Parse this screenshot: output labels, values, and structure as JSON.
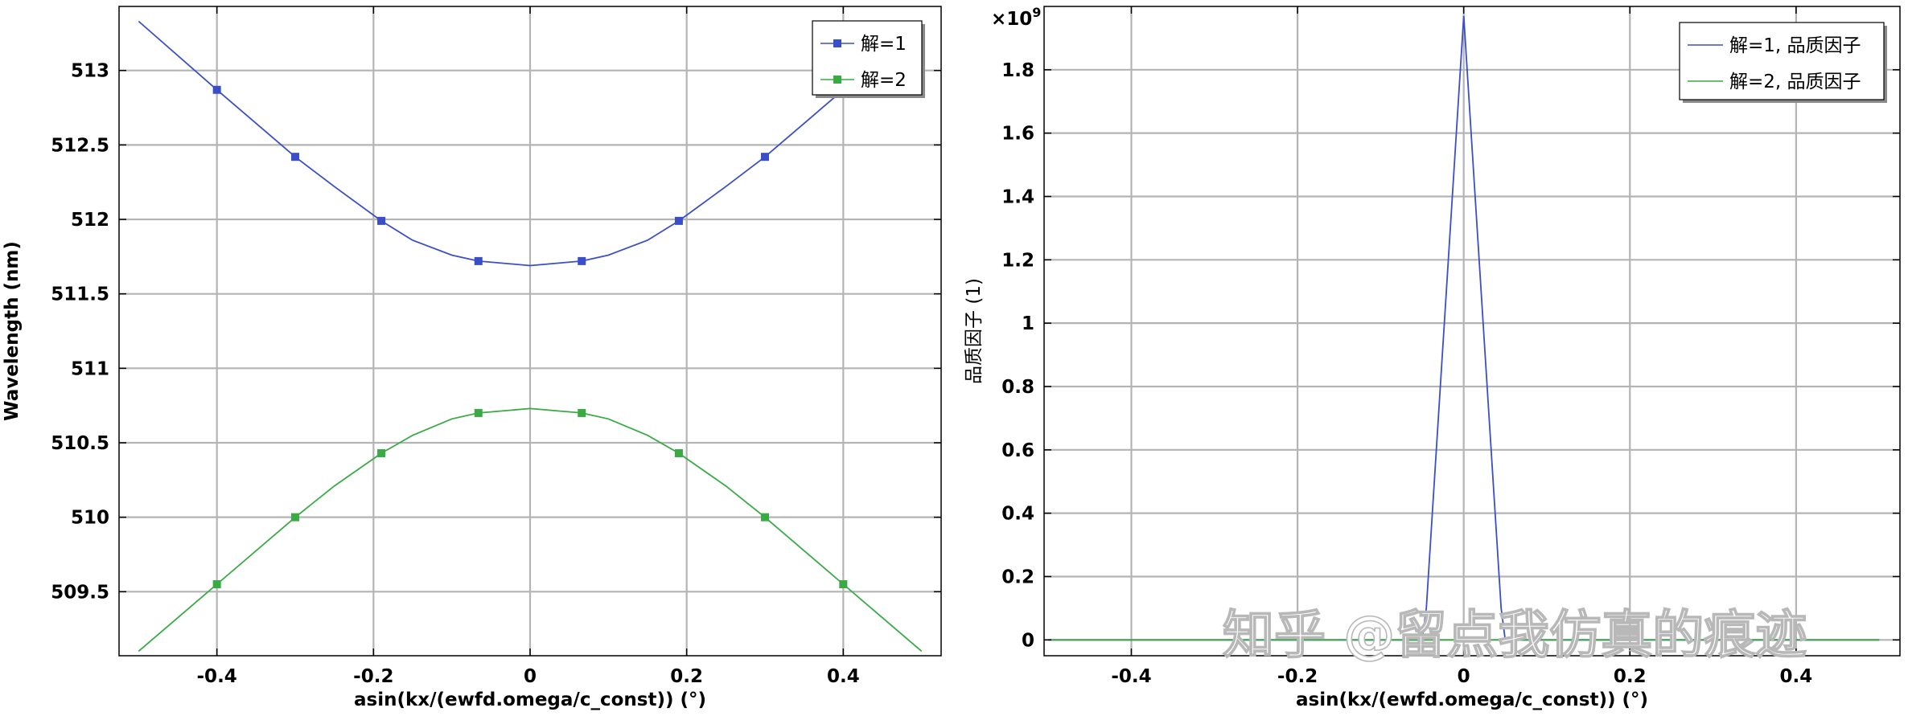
{
  "chart_data": [
    {
      "type": "line",
      "title": "",
      "xlabel": "asin(kx/(ewfd.omega/c_const)) (°)",
      "ylabel": "Wavelength (nm)",
      "xlim": [
        -0.525,
        0.525
      ],
      "ylim": [
        509.07,
        513.43
      ],
      "xticks": [
        -0.4,
        -0.2,
        0,
        0.2,
        0.4
      ],
      "xtick_labels": [
        "-0.4",
        "-0.2",
        "0",
        "0.2",
        "0.4"
      ],
      "yticks": [
        509.5,
        510,
        510.5,
        511,
        511.5,
        512,
        512.5,
        513
      ],
      "ytick_labels": [
        "509.5",
        "510",
        "510.5",
        "511",
        "511.5",
        "512",
        "512.5",
        "513"
      ],
      "grid": true,
      "legend_position": "top-right",
      "series": [
        {
          "name": "解=1",
          "color": "#3a4fc7",
          "marker": "square",
          "x": [
            -0.5,
            -0.4,
            -0.3,
            -0.25,
            -0.19,
            -0.15,
            -0.1,
            -0.066,
            0,
            0.066,
            0.1,
            0.15,
            0.19,
            0.25,
            0.3,
            0.4,
            0.5
          ],
          "y": [
            513.33,
            512.87,
            512.42,
            512.22,
            511.99,
            511.86,
            511.76,
            511.72,
            511.69,
            511.72,
            511.76,
            511.86,
            511.99,
            512.22,
            512.42,
            512.87,
            513.33
          ],
          "markers_x": [
            -0.4,
            -0.3,
            -0.19,
            -0.066,
            0.066,
            0.19,
            0.3
          ],
          "markers_y": [
            512.87,
            512.42,
            511.99,
            511.72,
            511.72,
            511.99,
            512.42
          ]
        },
        {
          "name": "解=2",
          "color": "#3aaa45",
          "marker": "square",
          "x": [
            -0.5,
            -0.4,
            -0.3,
            -0.25,
            -0.19,
            -0.15,
            -0.1,
            -0.066,
            0,
            0.066,
            0.1,
            0.15,
            0.19,
            0.25,
            0.3,
            0.4,
            0.5
          ],
          "y": [
            509.1,
            509.55,
            510.0,
            510.21,
            510.43,
            510.55,
            510.66,
            510.7,
            510.73,
            510.7,
            510.66,
            510.55,
            510.43,
            510.21,
            510.0,
            509.55,
            509.1
          ],
          "markers_x": [
            -0.4,
            -0.3,
            -0.19,
            -0.066,
            0.066,
            0.19,
            0.3,
            0.4
          ],
          "markers_y": [
            509.55,
            510.0,
            510.43,
            510.7,
            510.7,
            510.43,
            510.0,
            509.55
          ]
        }
      ]
    },
    {
      "type": "line",
      "title": "",
      "xlabel": "asin(kx/(ewfd.omega/c_const)) (°)",
      "ylabel": "品质因子 (1)",
      "y_multiplier_label": "×10",
      "y_multiplier_exponent": "9",
      "xlim": [
        -0.505,
        0.525
      ],
      "ylim": [
        -0.05,
        2.0
      ],
      "xticks": [
        -0.4,
        -0.2,
        0,
        0.2,
        0.4
      ],
      "xtick_labels": [
        "-0.4",
        "-0.2",
        "0",
        "0.2",
        "0.4"
      ],
      "yticks": [
        0,
        0.2,
        0.4,
        0.6,
        0.8,
        1,
        1.2,
        1.4,
        1.6,
        1.8
      ],
      "ytick_labels": [
        "0",
        "0.2",
        "0.4",
        "0.6",
        "0.8",
        "1",
        "1.2",
        "1.4",
        "1.6",
        "1.8"
      ],
      "grid": true,
      "legend_position": "top-right",
      "series": [
        {
          "name": "解=1, 品质因子",
          "color": "#3a4fc7",
          "x": [
            -0.5,
            -0.05,
            -0.045,
            0,
            0.045,
            0.05,
            0.5
          ],
          "y": [
            0,
            0,
            0.1,
            1.97,
            0.1,
            0,
            0
          ]
        },
        {
          "name": "解=2, 品质因子",
          "color": "#3aaa45",
          "x": [
            -0.5,
            0.5
          ],
          "y": [
            0,
            0
          ]
        }
      ]
    }
  ],
  "watermark": "知乎 @留点我仿真的痕迹"
}
